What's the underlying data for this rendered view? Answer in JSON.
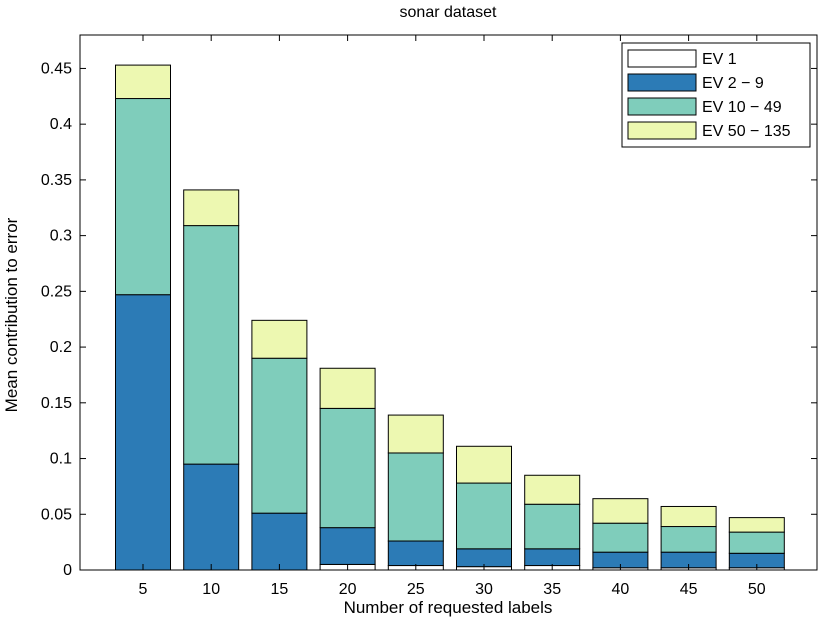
{
  "chart_data": {
    "type": "bar",
    "stacked": true,
    "title": "sonar dataset",
    "xlabel": "Number of requested labels",
    "ylabel": "Mean contribution to error",
    "categories": [
      "5",
      "10",
      "15",
      "20",
      "25",
      "30",
      "35",
      "40",
      "45",
      "50"
    ],
    "ylim": [
      0,
      0.48
    ],
    "yticks": [
      0,
      0.05,
      0.1,
      0.15,
      0.2,
      0.25,
      0.3,
      0.35,
      0.4,
      0.45
    ],
    "ytick_labels": [
      "0",
      "0.05",
      "0.1",
      "0.15",
      "0.2",
      "0.25",
      "0.3",
      "0.35",
      "0.4",
      "0.45"
    ],
    "grid": false,
    "legend_position": "top-right",
    "series": [
      {
        "name": "EV 1",
        "color": "#ffffff",
        "values": [
          0.0,
          0.0,
          0.0,
          0.005,
          0.004,
          0.003,
          0.004,
          0.002,
          0.002,
          0.002
        ]
      },
      {
        "name": "EV 2 − 9",
        "color": "#2c7bb6",
        "values": [
          0.247,
          0.095,
          0.051,
          0.033,
          0.022,
          0.016,
          0.015,
          0.014,
          0.014,
          0.013
        ]
      },
      {
        "name": "EV 10 − 49",
        "color": "#7fcdbb",
        "values": [
          0.176,
          0.214,
          0.139,
          0.107,
          0.079,
          0.059,
          0.04,
          0.026,
          0.023,
          0.019
        ]
      },
      {
        "name": "EV 50 − 135",
        "color": "#edf8b1",
        "values": [
          0.03,
          0.032,
          0.034,
          0.036,
          0.034,
          0.033,
          0.026,
          0.022,
          0.018,
          0.013
        ]
      }
    ]
  }
}
